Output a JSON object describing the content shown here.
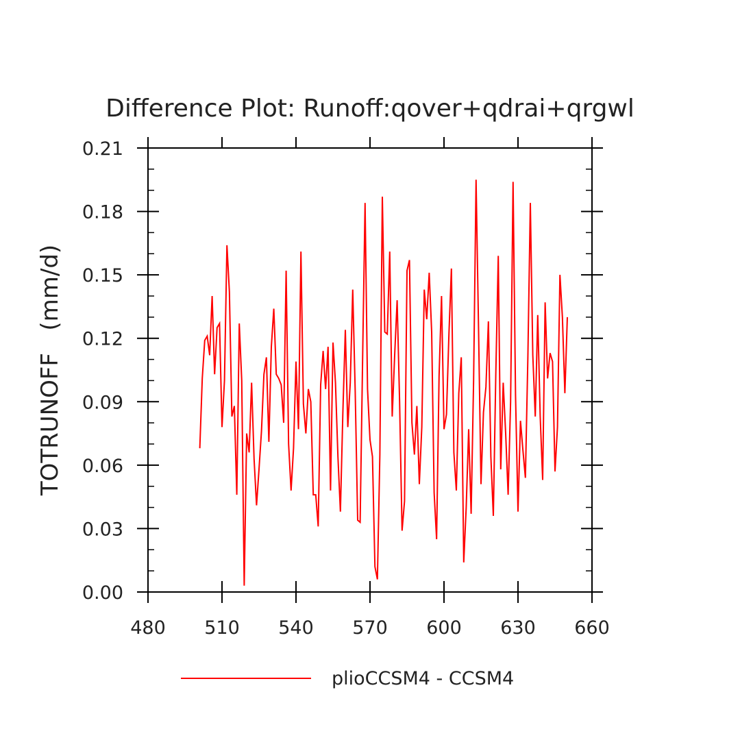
{
  "chart_data": {
    "type": "line",
    "title": "Difference Plot: Runoff:qover+qdrai+qrgwl",
    "xlabel": "",
    "ylabel": "TOTRUNOFF   (mm/d)",
    "xlim": [
      480,
      660
    ],
    "ylim": [
      0.0,
      0.21
    ],
    "x_ticks": [
      480,
      510,
      540,
      570,
      600,
      630,
      660
    ],
    "x_tick_labels": [
      "480",
      "510",
      "540",
      "570",
      "600",
      "630",
      "660"
    ],
    "y_ticks": [
      0.0,
      0.03,
      0.06,
      0.09,
      0.12,
      0.15,
      0.18,
      0.21
    ],
    "y_tick_labels": [
      "0.00",
      "0.03",
      "0.06",
      "0.09",
      "0.12",
      "0.15",
      "0.18",
      "0.21"
    ],
    "grid": false,
    "legend_position": "bottom",
    "series": [
      {
        "name": "plioCCSM4 - CCSM4",
        "color": "#ff0000",
        "x_start": 501,
        "x_step": 1,
        "values": [
          0.068,
          0.101,
          0.119,
          0.121,
          0.112,
          0.14,
          0.103,
          0.125,
          0.127,
          0.078,
          0.1,
          0.164,
          0.142,
          0.083,
          0.088,
          0.046,
          0.127,
          0.1,
          0.003,
          0.075,
          0.066,
          0.099,
          0.063,
          0.041,
          0.058,
          0.076,
          0.103,
          0.111,
          0.071,
          0.116,
          0.134,
          0.103,
          0.101,
          0.098,
          0.08,
          0.152,
          0.07,
          0.048,
          0.068,
          0.109,
          0.077,
          0.161,
          0.089,
          0.075,
          0.096,
          0.09,
          0.046,
          0.046,
          0.031,
          0.098,
          0.114,
          0.096,
          0.116,
          0.048,
          0.118,
          0.099,
          0.064,
          0.038,
          0.085,
          0.124,
          0.078,
          0.099,
          0.143,
          0.095,
          0.034,
          0.033,
          0.11,
          0.184,
          0.096,
          0.072,
          0.064,
          0.012,
          0.006,
          0.065,
          0.187,
          0.123,
          0.122,
          0.161,
          0.083,
          0.112,
          0.138,
          0.09,
          0.029,
          0.043,
          0.152,
          0.157,
          0.08,
          0.065,
          0.088,
          0.051,
          0.078,
          0.143,
          0.129,
          0.151,
          0.123,
          0.047,
          0.025,
          0.102,
          0.14,
          0.077,
          0.084,
          0.122,
          0.153,
          0.066,
          0.048,
          0.094,
          0.111,
          0.014,
          0.04,
          0.077,
          0.037,
          0.1,
          0.195,
          0.125,
          0.051,
          0.085,
          0.097,
          0.128,
          0.064,
          0.036,
          0.103,
          0.159,
          0.058,
          0.099,
          0.075,
          0.046,
          0.09,
          0.194,
          0.093,
          0.038,
          0.081,
          0.067,
          0.054,
          0.111,
          0.184,
          0.112,
          0.083,
          0.131,
          0.083,
          0.053,
          0.137,
          0.101,
          0.113,
          0.109,
          0.057,
          0.078,
          0.15,
          0.13,
          0.094,
          0.13
        ]
      }
    ]
  }
}
